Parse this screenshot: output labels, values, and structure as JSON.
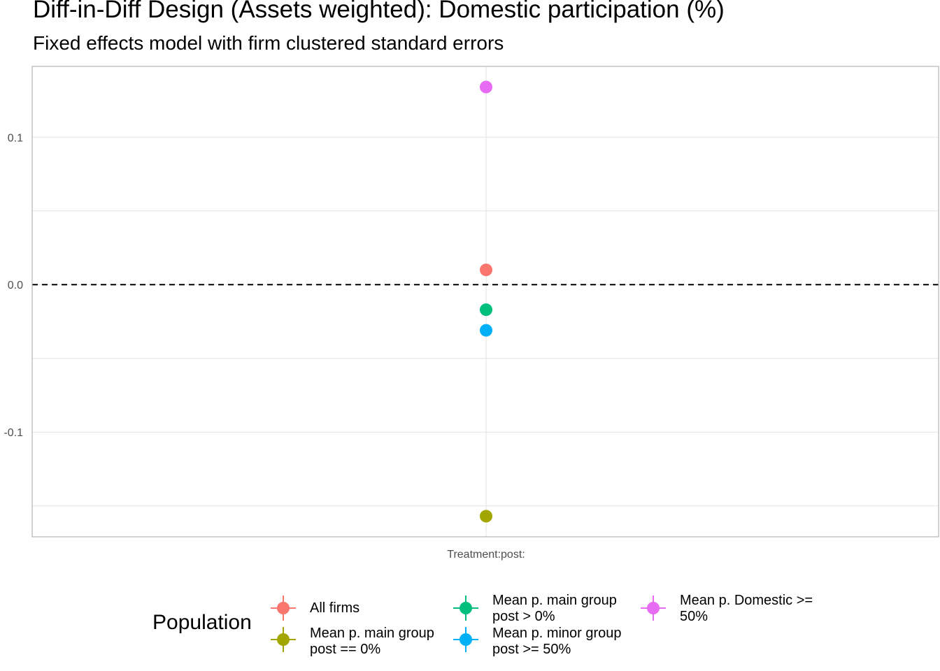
{
  "chart_data": {
    "type": "scatter",
    "title": "Diff-in-Diff Design (Assets weighted): Domestic participation (%)",
    "subtitle": "Fixed effects model with firm clustered standard errors",
    "categories": [
      "Treatment:post:"
    ],
    "ylim": [
      -0.171,
      0.148
    ],
    "yticks": [
      -0.1,
      0.0,
      0.1
    ],
    "ytick_labels": [
      "-0.1",
      "0.0",
      "0.1"
    ],
    "reference_line": 0.0,
    "grid": true,
    "legend_title": "Population",
    "legend_position": "bottom",
    "series": [
      {
        "name": "All firms",
        "values": [
          0.01
        ],
        "color": "#F8766D"
      },
      {
        "name": "Mean p. main group\npost == 0%",
        "values": [
          -0.157
        ],
        "color": "#A3A500"
      },
      {
        "name": "Mean p. main group\npost > 0%",
        "values": [
          -0.017
        ],
        "color": "#00BF7D"
      },
      {
        "name": "Mean p. minor group\npost >= 50%",
        "values": [
          -0.031
        ],
        "color": "#00B0F6"
      },
      {
        "name": "Mean p. Domestic >=\n50%",
        "values": [
          0.134
        ],
        "color": "#E76BF3"
      }
    ]
  }
}
